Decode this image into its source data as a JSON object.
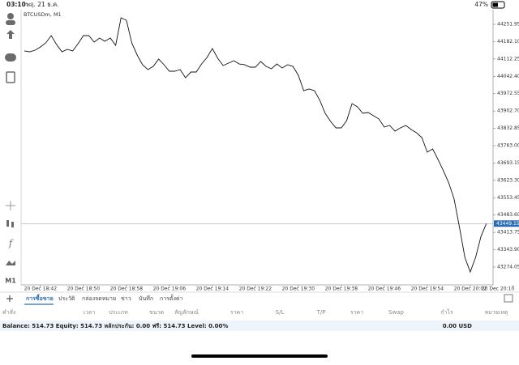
{
  "status_bar": {
    "time": "03:10",
    "date": "พฤ. 21 ธ.ค.",
    "battery": "47%"
  },
  "chart_data": {
    "type": "line",
    "title": "BTCUSDm, M1",
    "categories": [
      null,
      null,
      null,
      "20 Dec 18:42",
      null,
      null,
      null,
      null,
      null,
      null,
      null,
      "20 Dec 18:50",
      null,
      null,
      null,
      null,
      null,
      null,
      null,
      "20 Dec 18:58",
      null,
      null,
      null,
      null,
      null,
      null,
      null,
      "20 Dec 19:06",
      null,
      null,
      null,
      null,
      null,
      null,
      null,
      "20 Dec 19:14",
      null,
      null,
      null,
      null,
      null,
      null,
      null,
      "20 Dec 19:22",
      null,
      null,
      null,
      null,
      null,
      null,
      null,
      "20 Dec 19:30",
      null,
      null,
      null,
      null,
      null,
      null,
      null,
      "20 Dec 19:38",
      null,
      null,
      null,
      null,
      null,
      null,
      null,
      "20 Dec 19:46",
      null,
      null,
      null,
      null,
      null,
      null,
      null,
      "20 Dec 19:54",
      null,
      null,
      null,
      null,
      null,
      null,
      null,
      "20 Dec 20:02",
      null,
      null,
      null,
      null,
      null,
      null,
      null,
      "20 Dec 20:10"
    ],
    "values": [
      44144.4,
      44141.1,
      44147.6,
      44160.7,
      44177,
      44206.3,
      44170.4,
      44141.1,
      44150.9,
      44144.4,
      44173.7,
      44206.3,
      44206.3,
      44180.2,
      44196.5,
      44183.5,
      44196.5,
      44167.2,
      44278,
      44268.2,
      44177,
      44128.1,
      44089,
      44069.4,
      44082.4,
      44111.8,
      44089,
      44062.9,
      44062.9,
      44069.4,
      44036.8,
      44059.6,
      44059.6,
      44092.2,
      44118.3,
      44154.2,
      44115.1,
      44085.7,
      44095.5,
      44105.2,
      44092.2,
      44089,
      44079.2,
      44079.2,
      44102,
      44082.4,
      44072.7,
      44092.2,
      44075.9,
      44089,
      44082.4,
      44046.6,
      43984.6,
      43991.2,
      43984.6,
      43945.5,
      43893.4,
      43860.8,
      43834.7,
      43834.7,
      43864,
      43932.5,
      43919.4,
      43893.4,
      43896.6,
      43883.6,
      43870.5,
      43837.9,
      43844.5,
      43821.6,
      43834.7,
      43844.5,
      43828.1,
      43815.1,
      43795.6,
      43736.9,
      43749.9,
      43707.5,
      43662,
      43613,
      43547.8,
      43433.7,
      43313.1,
      43254.4,
      43313.1,
      43397.8,
      43449.15,
      null,
      null,
      null,
      null,
      null
    ],
    "color": "#111111",
    "ylim": [
      43202.3,
      44300.85
    ],
    "yticks": [
      44251.95,
      {
        "value": 44182.1,
        "label": "44182.10"
      },
      44112.25,
      {
        "value": 44042.4,
        "label": "44042.40"
      },
      43972.55,
      {
        "value": 43902.7,
        "label": "43902.70"
      },
      43832.85,
      {
        "value": 43763,
        "label": "43763.00"
      },
      43693.15,
      {
        "value": 43623.3,
        "label": "43623.30"
      },
      43553.45,
      {
        "value": 43483.6,
        "label": "43483.60"
      },
      43413.75,
      {
        "value": 43343.9,
        "label": "43343.90"
      },
      43274.05
    ],
    "price_line": 43449.15,
    "price_line_color": "#2b6cb0"
  },
  "toolbar": {
    "timeframe": "M1"
  },
  "tabs": [
    "การซื้อขาย",
    "ประวัติ",
    "กล่องจดหมาย",
    "ข่าว",
    "บันทึก",
    "การตั้งค่า"
  ],
  "table": {
    "header": [
      "คำสั่ง",
      "เวลา",
      "ประเภท",
      "ขนาด",
      "สัญลักษณ์",
      "ราคา",
      "S/L",
      "T/P",
      "ราคา",
      "Swap",
      "กำไร",
      "หมายเหตุ"
    ],
    "balance": "Balance: 514.73 Equity: 514.73 หลักประกัน: 0.00 ฟรี: 514.73 Level: 0.00%",
    "total": "0.00  USD"
  }
}
